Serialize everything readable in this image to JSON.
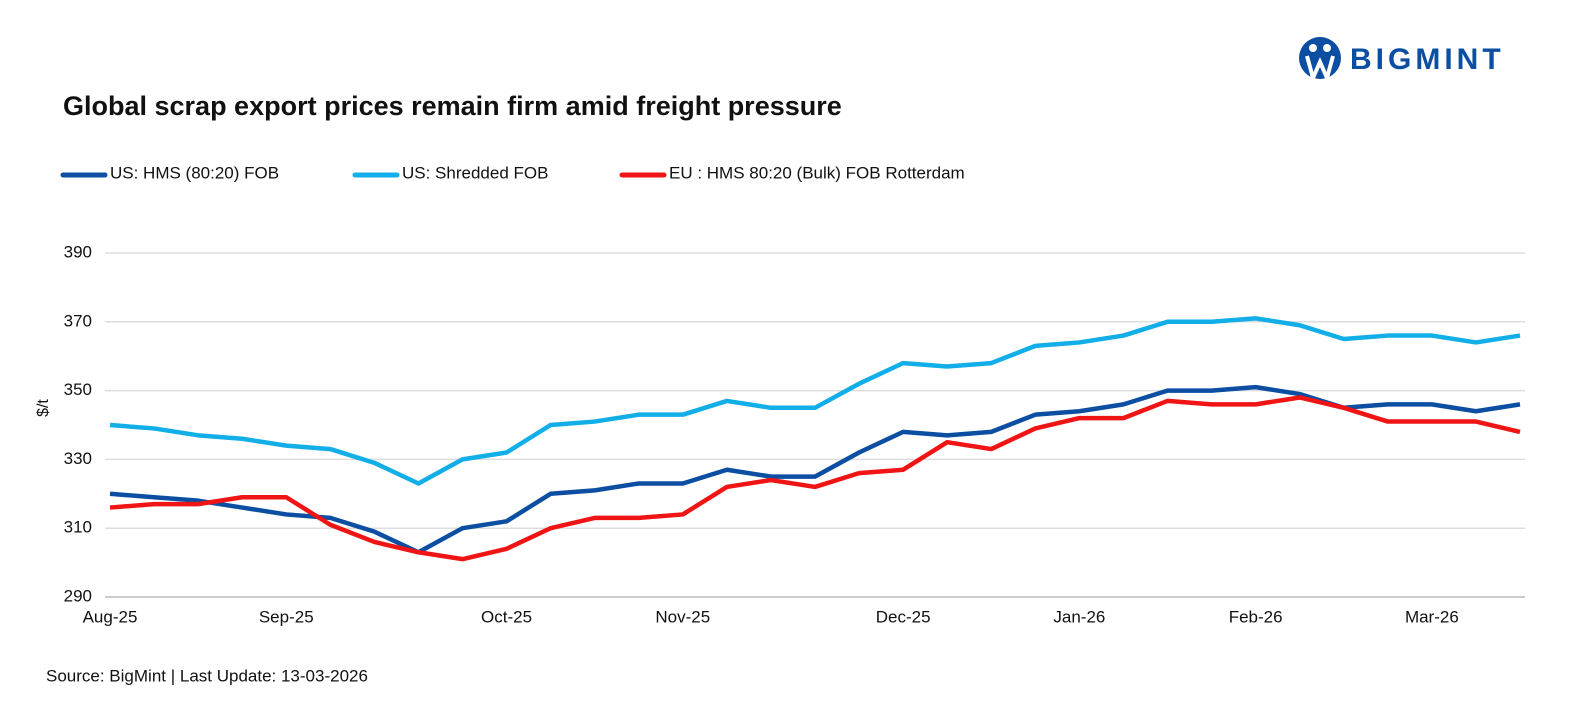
{
  "brand": "BIGMINT",
  "source": "Source: BigMint | Last Update: 13-03-2026",
  "chart_data": {
    "type": "line",
    "title": "Global scrap export prices remain firm amid freight pressure",
    "y_label": "$/t",
    "categories": [
      "Aug-25",
      null,
      null,
      null,
      "Sep-25",
      null,
      null,
      null,
      null,
      "Oct-25",
      null,
      null,
      null,
      "Nov-25",
      null,
      null,
      null,
      null,
      "Dec-25",
      null,
      null,
      null,
      "Jan-26",
      null,
      null,
      null,
      "Feb-26",
      null,
      null,
      null,
      "Mar-26",
      null,
      null
    ],
    "series": [
      {
        "name": "US: HMS (80:20) FOB",
        "color": "#0b4ea2",
        "values": [
          320,
          319,
          318,
          316,
          314,
          313,
          309,
          303,
          310,
          312,
          320,
          321,
          323,
          323,
          327,
          325,
          325,
          332,
          338,
          337,
          338,
          343,
          344,
          346,
          350,
          350,
          351,
          349,
          345,
          346,
          346,
          344,
          346
        ]
      },
      {
        "name": "US: Shredded FOB",
        "color": "#12aee8",
        "values": [
          340,
          339,
          337,
          336,
          334,
          333,
          329,
          323,
          330,
          332,
          340,
          341,
          343,
          343,
          347,
          345,
          345,
          352,
          358,
          357,
          358,
          363,
          364,
          366,
          370,
          370,
          371,
          369,
          365,
          366,
          366,
          364,
          366
        ]
      },
      {
        "name": "EU : HMS 80:20 (Bulk) FOB Rotterdam",
        "color": "#f01414",
        "values": [
          316,
          317,
          317,
          319,
          319,
          311,
          306,
          303,
          301,
          304,
          310,
          313,
          313,
          314,
          322,
          324,
          322,
          326,
          327,
          335,
          333,
          339,
          342,
          342,
          347,
          346,
          346,
          348,
          345,
          341,
          341,
          341,
          338
        ]
      }
    ],
    "ylim": [
      290,
      390
    ],
    "yticks": [
      290,
      310,
      330,
      350,
      370,
      390
    ],
    "grid": true,
    "legend": "top"
  }
}
